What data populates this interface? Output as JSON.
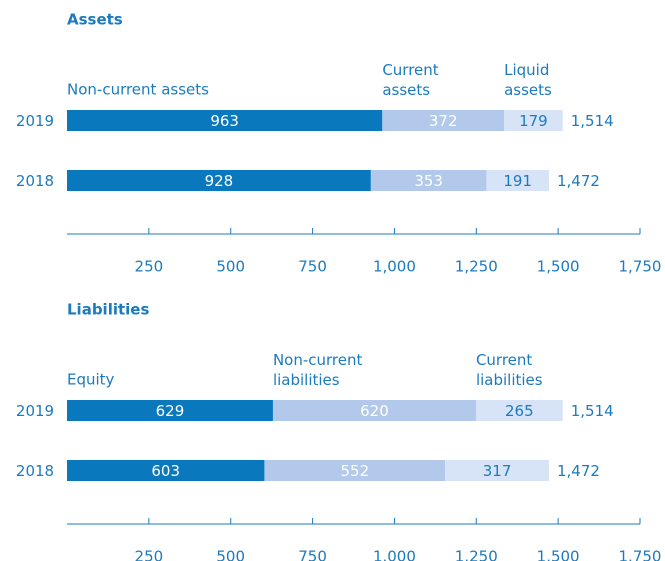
{
  "chart_data": [
    {
      "type": "stacked-bar-horizontal",
      "title": "Assets",
      "categories": [
        "2019",
        "2018"
      ],
      "series": [
        {
          "name": "Non-current assets",
          "color": "#0a78bd",
          "values": [
            963,
            928
          ]
        },
        {
          "name": "Current assets",
          "color": "#b2c9ec",
          "values": [
            372,
            353
          ]
        },
        {
          "name": "Liquid assets",
          "color": "#d7e4f7",
          "values": [
            179,
            191
          ]
        }
      ],
      "totals": [
        1514,
        1472
      ],
      "total_labels": [
        "1,514",
        "1,472"
      ],
      "xlim": [
        0,
        1750
      ],
      "xticks": [
        250,
        500,
        750,
        {
          "value": 1000,
          "label": "1,000"
        },
        {
          "value": 1250,
          "label": "1,250"
        },
        {
          "value": 1500,
          "label": "1,500"
        },
        {
          "value": 1750,
          "label": "1,750"
        }
      ]
    },
    {
      "type": "stacked-bar-horizontal",
      "title": "Liabilities",
      "categories": [
        "2019",
        "2018"
      ],
      "series": [
        {
          "name": "Equity",
          "color": "#0a78bd",
          "values": [
            629,
            603
          ]
        },
        {
          "name": "Non-current liabilities",
          "color": "#b2c9ec",
          "values": [
            620,
            552
          ]
        },
        {
          "name": "Current liabilities",
          "color": "#d7e4f7",
          "values": [
            265,
            317
          ]
        }
      ],
      "totals": [
        1514,
        1472
      ],
      "total_labels": [
        "1,514",
        "1,472"
      ],
      "xlim": [
        0,
        1750
      ],
      "xticks": [
        250,
        500,
        750,
        {
          "value": 1000,
          "label": "1.000"
        },
        {
          "value": 1250,
          "label": "1.250"
        },
        {
          "value": 1500,
          "label": "1.500"
        },
        {
          "value": 1750,
          "label": "1.750"
        }
      ]
    }
  ]
}
